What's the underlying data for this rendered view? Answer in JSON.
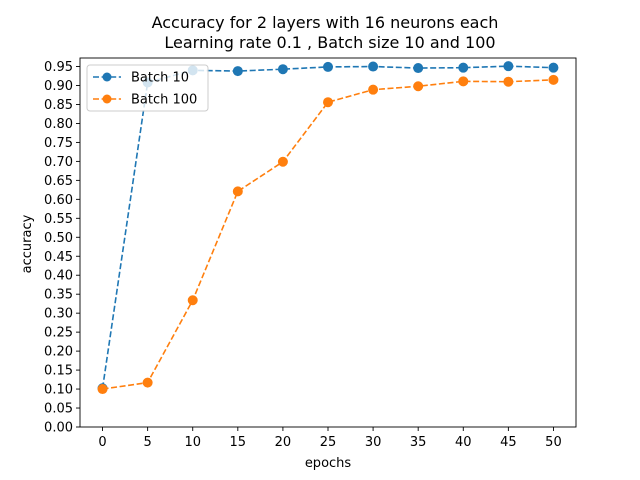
{
  "chart_data": {
    "type": "line",
    "title": "Accuracy for 2 layers with 16 neurons each",
    "subtitle": "Learning rate 0.1 , Batch size 10 and 100",
    "xlabel": "epochs",
    "ylabel": "accuracy",
    "xlim": [
      -2.5,
      52.5
    ],
    "ylim": [
      0.0,
      0.9725
    ],
    "x_ticks": [
      0,
      5,
      10,
      15,
      20,
      25,
      30,
      35,
      40,
      45,
      50
    ],
    "x_tick_labels": [
      "0",
      "5",
      "10",
      "15",
      "20",
      "25",
      "30",
      "35",
      "40",
      "45",
      "50"
    ],
    "y_ticks": [
      0.0,
      0.05,
      0.1,
      0.15,
      0.2,
      0.25,
      0.3,
      0.35,
      0.4,
      0.45,
      0.5,
      0.55,
      0.6,
      0.65,
      0.7,
      0.75,
      0.8,
      0.85,
      0.9,
      0.95
    ],
    "y_tick_labels": [
      "0.00",
      "0.05",
      "0.10",
      "0.15",
      "0.20",
      "0.25",
      "0.30",
      "0.35",
      "0.40",
      "0.45",
      "0.50",
      "0.55",
      "0.60",
      "0.65",
      "0.70",
      "0.75",
      "0.80",
      "0.85",
      "0.90",
      "0.95"
    ],
    "grid": false,
    "legend_position": "top-left",
    "x": [
      0,
      5,
      10,
      15,
      20,
      25,
      30,
      35,
      40,
      45,
      50
    ],
    "series": [
      {
        "name": "Batch 10",
        "color": "#1f77b4",
        "linestyle": "dashed",
        "marker": "circle",
        "values": [
          0.102,
          0.908,
          0.94,
          0.938,
          0.943,
          0.949,
          0.95,
          0.946,
          0.947,
          0.951,
          0.947
        ]
      },
      {
        "name": "Batch 100",
        "color": "#ff7f0e",
        "linestyle": "dashed",
        "marker": "circle",
        "values": [
          0.1,
          0.117,
          0.334,
          0.621,
          0.699,
          0.856,
          0.889,
          0.898,
          0.911,
          0.91,
          0.915
        ]
      }
    ]
  }
}
